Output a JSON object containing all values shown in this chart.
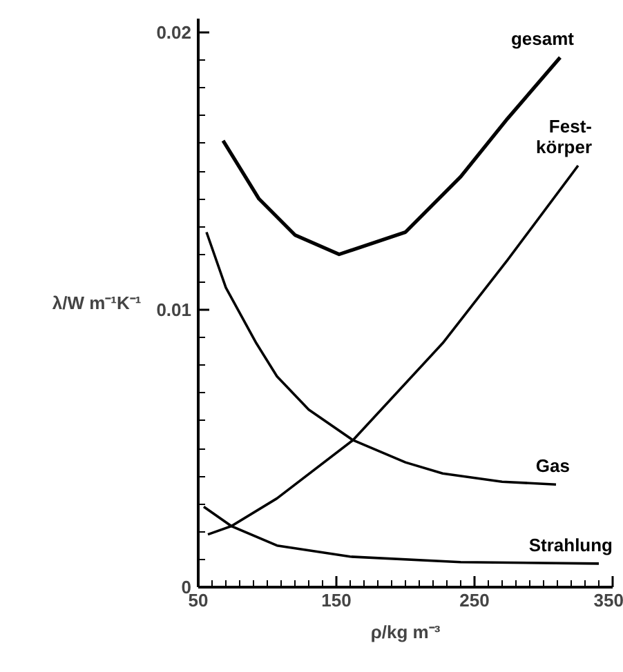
{
  "chart_data": {
    "type": "line",
    "xlabel": "ρ/kg m⁻³",
    "ylabel": "λ/W m⁻¹K⁻¹",
    "xlim": [
      50,
      350
    ],
    "ylim": [
      0,
      0.0205
    ],
    "xticks": [
      50,
      {
        "value": 60,
        "label": null
      },
      {
        "value": 70,
        "label": null
      },
      {
        "value": 80,
        "label": null
      },
      {
        "value": 90,
        "label": null
      },
      {
        "value": 100,
        "label": null
      },
      {
        "value": 110,
        "label": null
      },
      {
        "value": 120,
        "label": null
      },
      {
        "value": 130,
        "label": null
      },
      {
        "value": 140,
        "label": null
      },
      150,
      {
        "value": 160,
        "label": null
      },
      {
        "value": 170,
        "label": null
      },
      {
        "value": 180,
        "label": null
      },
      {
        "value": 190,
        "label": null
      },
      {
        "value": 200,
        "label": null
      },
      {
        "value": 210,
        "label": null
      },
      {
        "value": 220,
        "label": null
      },
      {
        "value": 230,
        "label": null
      },
      {
        "value": 240,
        "label": null
      },
      250,
      {
        "value": 260,
        "label": null
      },
      {
        "value": 270,
        "label": null
      },
      {
        "value": 280,
        "label": null
      },
      {
        "value": 290,
        "label": null
      },
      {
        "value": 300,
        "label": null
      },
      {
        "value": 310,
        "label": null
      },
      {
        "value": 320,
        "label": null
      },
      {
        "value": 330,
        "label": null
      },
      {
        "value": 340,
        "label": null
      },
      350
    ],
    "yticks": [
      0,
      {
        "value": 0.001,
        "label": null
      },
      {
        "value": 0.002,
        "label": null
      },
      {
        "value": 0.003,
        "label": null
      },
      {
        "value": 0.004,
        "label": null
      },
      {
        "value": 0.005,
        "label": null
      },
      {
        "value": 0.006,
        "label": null
      },
      {
        "value": 0.007,
        "label": null
      },
      {
        "value": 0.008,
        "label": null
      },
      {
        "value": 0.009,
        "label": null
      },
      0.01,
      {
        "value": 0.011,
        "label": null
      },
      {
        "value": 0.012,
        "label": null
      },
      {
        "value": 0.013,
        "label": null
      },
      {
        "value": 0.014,
        "label": null
      },
      {
        "value": 0.015,
        "label": null
      },
      {
        "value": 0.016,
        "label": null
      },
      {
        "value": 0.017,
        "label": null
      },
      {
        "value": 0.018,
        "label": null
      },
      {
        "value": 0.019,
        "label": null
      },
      0.02
    ],
    "grid": false,
    "legend": false,
    "marker": "none",
    "line_style": "solid",
    "series": [
      {
        "name": "gesamt",
        "color": "#000000",
        "x": [
          68,
          94,
          120,
          152,
          200,
          240,
          274,
          312
        ],
        "values": [
          0.0161,
          0.014,
          0.0127,
          0.012,
          0.0128,
          0.0148,
          0.0169,
          0.0191
        ]
      },
      {
        "name": "Fest-\nkörper",
        "color": "#000000",
        "x": [
          57,
          74,
          107,
          162,
          227,
          274,
          325
        ],
        "values": [
          0.0019,
          0.0022,
          0.0032,
          0.0053,
          0.0088,
          0.0118,
          0.0152
        ]
      },
      {
        "name": "Gas",
        "color": "#000000",
        "x": [
          56,
          70,
          92,
          107,
          130,
          162,
          200,
          227,
          270,
          309
        ],
        "values": [
          0.0128,
          0.0108,
          0.0088,
          0.0076,
          0.0064,
          0.0053,
          0.0045,
          0.0041,
          0.0038,
          0.0037
        ]
      },
      {
        "name": "Strahlung",
        "color": "#000000",
        "x": [
          54,
          74,
          107,
          160,
          240,
          340
        ],
        "values": [
          0.0029,
          0.0022,
          0.0015,
          0.0011,
          0.0009,
          0.00085
        ]
      }
    ]
  }
}
